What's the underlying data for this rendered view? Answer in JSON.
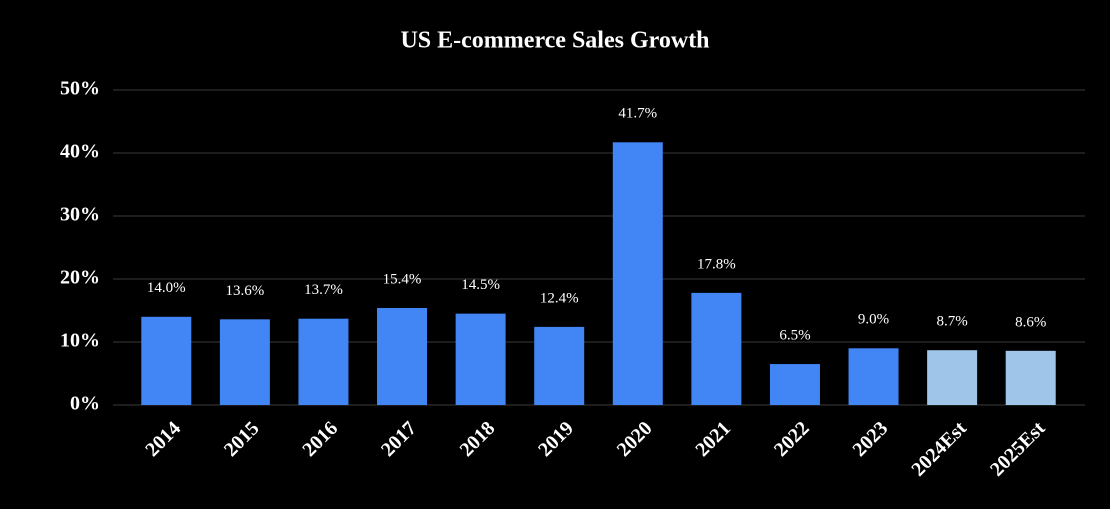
{
  "chart_data": {
    "type": "bar",
    "title": "US E-commerce Sales Growth",
    "categories": [
      "2014",
      "2015",
      "2016",
      "2017",
      "2018",
      "2019",
      "2020",
      "2021",
      "2022",
      "2023",
      "2024Est",
      "2025Est"
    ],
    "values": [
      14.0,
      13.6,
      13.7,
      15.4,
      14.5,
      12.4,
      41.7,
      17.8,
      6.5,
      9.0,
      8.7,
      8.6
    ],
    "value_labels": [
      "14.0%",
      "13.6%",
      "13.7%",
      "15.4%",
      "14.5%",
      "12.4%",
      "41.7%",
      "17.8%",
      "6.5%",
      "9.0%",
      "8.7%",
      "8.6%"
    ],
    "colors": [
      "#4285f4",
      "#4285f4",
      "#4285f4",
      "#4285f4",
      "#4285f4",
      "#4285f4",
      "#4285f4",
      "#4285f4",
      "#4285f4",
      "#4285f4",
      "#9fc5e8",
      "#9fc5e8"
    ],
    "ylim": [
      0,
      50
    ],
    "yticks": [
      {
        "value": 0,
        "label": "0%"
      },
      {
        "value": 10,
        "label": "10%"
      },
      {
        "value": 20,
        "label": "20%"
      },
      {
        "value": 30,
        "label": "30%"
      },
      {
        "value": 40,
        "label": "40%"
      },
      {
        "value": 50,
        "label": "50%"
      }
    ],
    "grid": true
  }
}
